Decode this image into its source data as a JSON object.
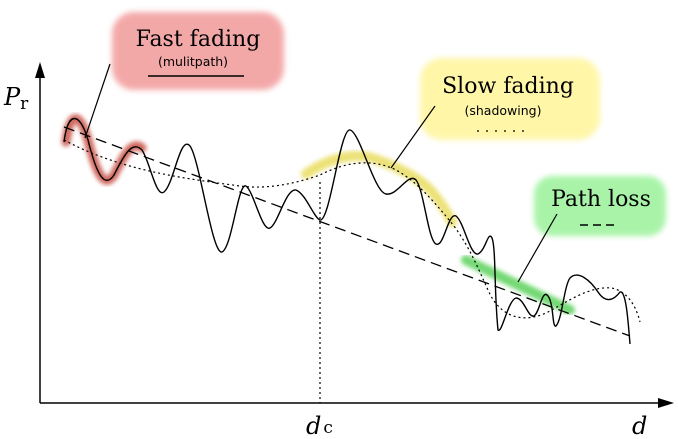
{
  "labels": {
    "y_axis": "P",
    "y_axis_sub": "r",
    "x_axis": "d",
    "x_marker": "d",
    "x_marker_sub": "c"
  },
  "annotations": {
    "fast_fading": {
      "title": "Fast fading",
      "subtitle": "(mulitpath)",
      "highlight_color": "#f29a9a",
      "line_color": "#c0392b"
    },
    "slow_fading": {
      "title": "Slow fading",
      "subtitle": "(shadowing)",
      "highlight_color": "#fff59a",
      "line_color": "#e6d84a"
    },
    "path_loss": {
      "title": "Path loss",
      "highlight_color": "#9af29a",
      "line_color": "#37c837"
    }
  }
}
